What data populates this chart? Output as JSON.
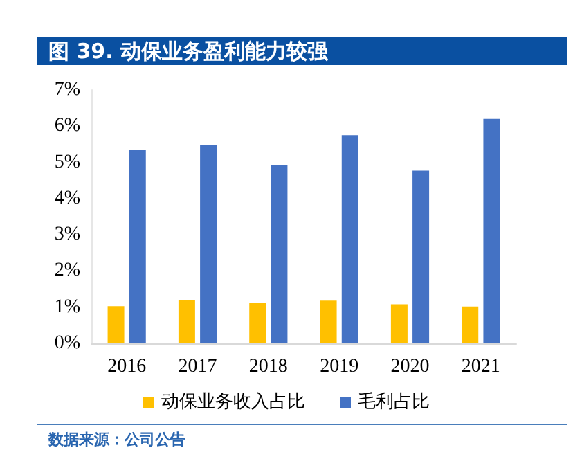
{
  "chart_data": {
    "type": "bar",
    "title": "图 39. 动保业务盈利能力较强",
    "categories": [
      "2016",
      "2017",
      "2018",
      "2019",
      "2020",
      "2021"
    ],
    "series": [
      {
        "name": "动保业务收入占比",
        "color": "#ffc000",
        "values": [
          1.03,
          1.2,
          1.11,
          1.18,
          1.08,
          1.02
        ]
      },
      {
        "name": "毛利占比",
        "color": "#4472c4",
        "values": [
          5.34,
          5.48,
          4.92,
          5.75,
          4.77,
          6.2
        ]
      }
    ],
    "ylim": [
      0,
      7
    ],
    "yticks": [
      {
        "value": 0,
        "label": "0%"
      },
      {
        "value": 1,
        "label": "1%"
      },
      {
        "value": 2,
        "label": "2%"
      },
      {
        "value": 3,
        "label": "3%"
      },
      {
        "value": 4,
        "label": "4%"
      },
      {
        "value": 5,
        "label": "5%"
      },
      {
        "value": 6,
        "label": "6%"
      },
      {
        "value": 7,
        "label": "7%"
      }
    ],
    "grid": false,
    "legend": "bottom",
    "annotations": [
      "数据来源：公司公告"
    ]
  }
}
